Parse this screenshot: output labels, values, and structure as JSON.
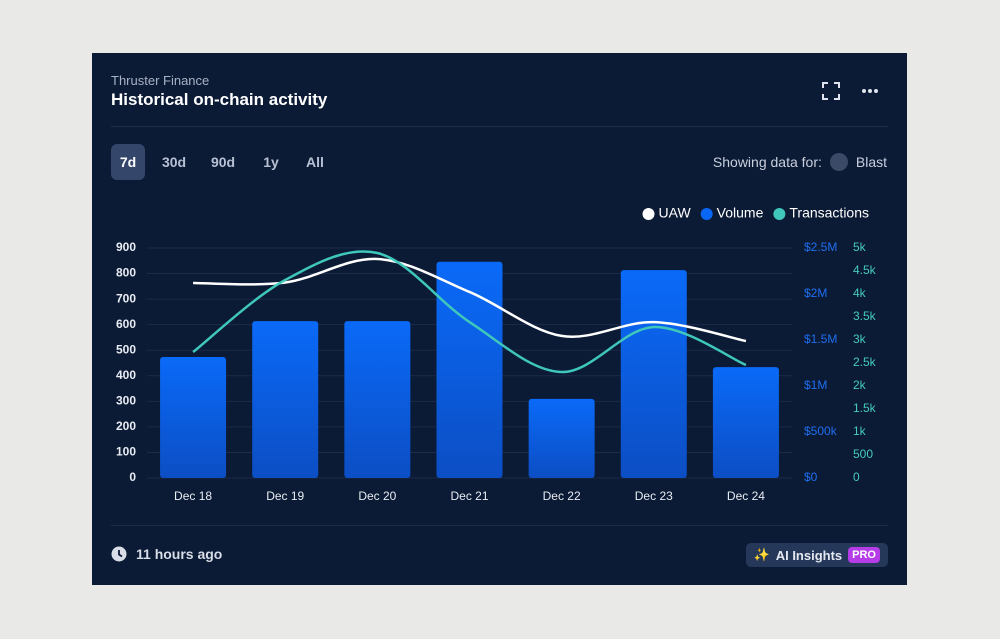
{
  "header": {
    "subtitle": "Thruster Finance",
    "title": "Historical on-chain activity"
  },
  "tabs": [
    "7d",
    "30d",
    "90d",
    "1y",
    "All"
  ],
  "active_tab": 0,
  "filter": {
    "label": "Showing data for:",
    "chain": "Blast"
  },
  "footer": {
    "updated": "11 hours ago",
    "insights": "AI Insights",
    "badge": "PRO"
  },
  "chart_data": {
    "type": "combo",
    "categories": [
      "Dec 18",
      "Dec 19",
      "Dec 20",
      "Dec 21",
      "Dec 22",
      "Dec 23",
      "Dec 24"
    ],
    "series": [
      {
        "name": "UAW",
        "type": "line",
        "axis": "y",
        "color": "#ffffff",
        "values": [
          763,
          765,
          857,
          728,
          556,
          610,
          536
        ]
      },
      {
        "name": "Volume",
        "type": "bar",
        "axis": "y2",
        "color": "#0a66f5",
        "values": [
          1315000,
          1705000,
          1705000,
          2350000,
          860000,
          2260000,
          1205000
        ]
      },
      {
        "name": "Transactions",
        "type": "line",
        "axis": "y3",
        "color": "#3fc7bc",
        "values": [
          2739,
          4304,
          4891,
          3391,
          2304,
          3283,
          2457
        ]
      }
    ],
    "ylim": [
      0,
      900
    ],
    "yticks": [
      0,
      100,
      200,
      300,
      400,
      500,
      600,
      700,
      800,
      900
    ],
    "y2lim": [
      0,
      2500000
    ],
    "y2ticks": [
      {
        "value": 0,
        "label": "$0"
      },
      {
        "value": 500000,
        "label": "$500k"
      },
      {
        "value": 1000000,
        "label": "$1M"
      },
      {
        "value": 1500000,
        "label": "$1.5M"
      },
      {
        "value": 2000000,
        "label": "$2M"
      },
      {
        "value": 2500000,
        "label": "$2.5M"
      }
    ],
    "y3lim": [
      0,
      5000
    ],
    "y3ticks": [
      0,
      500,
      {
        "value": 1000,
        "label": "1k"
      },
      {
        "value": 1500,
        "label": "1.5k"
      },
      {
        "value": 2000,
        "label": "2k"
      },
      {
        "value": 2500,
        "label": "2.5k"
      },
      {
        "value": 3000,
        "label": "3k"
      },
      {
        "value": 3500,
        "label": "3.5k"
      },
      {
        "value": 4000,
        "label": "4k"
      },
      {
        "value": 4500,
        "label": "4.5k"
      },
      {
        "value": 5000,
        "label": "5k"
      }
    ],
    "grid": true,
    "legend": "top-right"
  }
}
